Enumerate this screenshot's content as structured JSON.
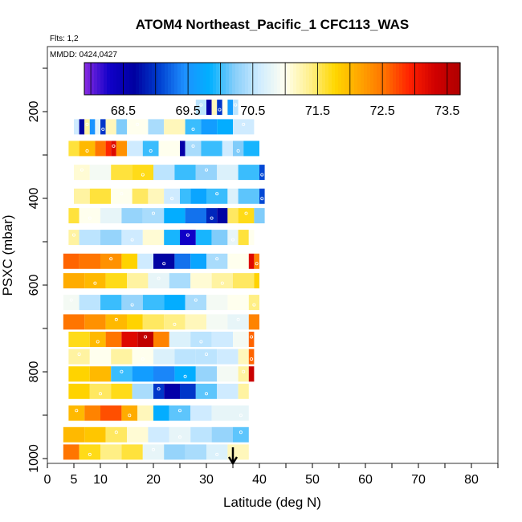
{
  "chart_data": {
    "type": "heatmap",
    "title": "ATOM4 Northeast_Pacific_1 CFC113_WAS",
    "flights_note": "Flts: 1,2",
    "dates_note": "MMDD: 0424,0427",
    "xlabel": "Latitude (deg N)",
    "ylabel": "PSXC (mbar)",
    "xlim": [
      0,
      85
    ],
    "ylim": [
      1000,
      50
    ],
    "x_ticks": [
      0,
      5,
      10,
      20,
      30,
      40,
      50,
      60,
      70,
      80
    ],
    "y_ticks": [
      200,
      400,
      600,
      800,
      1000
    ],
    "colorbar": {
      "ticks": [
        "68.5",
        "69.5",
        "70.5",
        "71.5",
        "72.5",
        "73.5"
      ],
      "tick_values": [
        68.5,
        69.5,
        70.5,
        71.5,
        72.5,
        73.5
      ],
      "range": [
        67.9,
        73.7
      ],
      "colors": [
        "#8a2be2",
        "#1000c8",
        "#0000a0",
        "#0040d0",
        "#1e90ff",
        "#00b0ff",
        "#87cefa",
        "#d0ecff",
        "#fffff0",
        "#fff08c",
        "#ffd700",
        "#ffa500",
        "#ff7000",
        "#ff2000",
        "#d00000",
        "#b00000"
      ]
    },
    "marker": {
      "type": "arrow",
      "x": 35
    },
    "rows": [
      {
        "p": 190,
        "segments": [
          [
            28,
            30,
            70.5
          ],
          [
            30,
            31,
            68.6
          ],
          [
            31,
            32,
            71.2
          ],
          [
            32,
            33,
            69.0
          ],
          [
            33,
            34,
            71.0
          ],
          [
            34,
            35,
            69.6
          ],
          [
            35,
            36,
            70.5
          ]
        ]
      },
      {
        "p": 235,
        "segments": [
          [
            5,
            6,
            70.6
          ],
          [
            6,
            7,
            68.7
          ],
          [
            7,
            8,
            71.3
          ],
          [
            8,
            9,
            69.5
          ],
          [
            9,
            10,
            70.8
          ],
          [
            10,
            11,
            69.0
          ],
          [
            11,
            13,
            71.2
          ],
          [
            13,
            15,
            70.2
          ],
          [
            15,
            19,
            71.0
          ],
          [
            19,
            22,
            70.4
          ],
          [
            22,
            26,
            71.2
          ],
          [
            26,
            29,
            70.0
          ],
          [
            29,
            32,
            69.6
          ],
          [
            32,
            35,
            69.8
          ],
          [
            35,
            39,
            70.6
          ]
        ]
      },
      {
        "p": 285,
        "segments": [
          [
            4,
            6,
            71.6
          ],
          [
            6,
            9,
            72.0
          ],
          [
            9,
            11,
            72.5
          ],
          [
            11,
            12,
            72.9
          ],
          [
            12,
            13,
            73.2
          ],
          [
            13,
            15,
            72.3
          ],
          [
            15,
            18,
            70.6
          ],
          [
            18,
            21,
            70.0
          ],
          [
            21,
            25,
            71.0
          ],
          [
            25,
            26,
            68.6
          ],
          [
            26,
            29,
            70.4
          ],
          [
            29,
            33,
            70.0
          ],
          [
            33,
            35,
            70.6
          ],
          [
            35,
            37,
            70.2
          ],
          [
            37,
            40,
            69.9
          ]
        ]
      },
      {
        "p": 340,
        "segments": [
          [
            5,
            8,
            71.1
          ],
          [
            8,
            12,
            70.9
          ],
          [
            12,
            16,
            71.6
          ],
          [
            16,
            20,
            71.7
          ],
          [
            20,
            24,
            70.5
          ],
          [
            24,
            28,
            70.0
          ],
          [
            28,
            32,
            70.3
          ],
          [
            32,
            36,
            70.7
          ],
          [
            36,
            40,
            70.0
          ],
          [
            40,
            41,
            69.1
          ]
        ]
      },
      {
        "p": 395,
        "segments": [
          [
            5,
            8,
            71.3
          ],
          [
            8,
            12,
            71.6
          ],
          [
            12,
            16,
            71.0
          ],
          [
            16,
            19,
            71.5
          ],
          [
            19,
            22,
            71.2
          ],
          [
            22,
            25,
            70.6
          ],
          [
            25,
            27,
            70.0
          ],
          [
            27,
            30,
            69.7
          ],
          [
            30,
            34,
            70.0
          ],
          [
            34,
            36,
            70.7
          ],
          [
            36,
            40,
            70.1
          ],
          [
            40,
            41,
            69.1
          ]
        ]
      },
      {
        "p": 440,
        "segments": [
          [
            4,
            6,
            71.6
          ],
          [
            6,
            10,
            71.0
          ],
          [
            10,
            14,
            70.8
          ],
          [
            14,
            18,
            70.3
          ],
          [
            18,
            22,
            70.4
          ],
          [
            22,
            26,
            69.8
          ],
          [
            26,
            30,
            69.3
          ],
          [
            30,
            32,
            68.9
          ],
          [
            32,
            34,
            68.7
          ],
          [
            34,
            36,
            71.5
          ],
          [
            36,
            39,
            71.7
          ],
          [
            39,
            41,
            70.2
          ]
        ]
      },
      {
        "p": 490,
        "segments": [
          [
            4,
            6,
            71.3
          ],
          [
            6,
            10,
            70.5
          ],
          [
            10,
            14,
            70.3
          ],
          [
            14,
            18,
            70.6
          ],
          [
            18,
            22,
            71.1
          ],
          [
            22,
            25,
            69.9
          ],
          [
            25,
            28,
            68.3
          ],
          [
            28,
            31,
            69.9
          ],
          [
            31,
            34,
            70.2
          ],
          [
            34,
            36,
            70.8
          ],
          [
            36,
            38,
            71.6
          ],
          [
            38,
            39,
            71.0
          ]
        ]
      },
      {
        "p": 545,
        "segments": [
          [
            3,
            6,
            72.6
          ],
          [
            6,
            10,
            72.5
          ],
          [
            10,
            14,
            72.3
          ],
          [
            14,
            17,
            71.8
          ],
          [
            17,
            20,
            70.6
          ],
          [
            20,
            24,
            68.7
          ],
          [
            24,
            27,
            69.3
          ],
          [
            27,
            30,
            69.7
          ],
          [
            30,
            34,
            70.4
          ],
          [
            34,
            38,
            71.0
          ],
          [
            38,
            39,
            73.2
          ],
          [
            39,
            40,
            72.4
          ]
        ]
      },
      {
        "p": 590,
        "segments": [
          [
            3,
            7,
            72.1
          ],
          [
            7,
            11,
            72.0
          ],
          [
            11,
            15,
            71.7
          ],
          [
            15,
            19,
            71.3
          ],
          [
            19,
            23,
            70.8
          ],
          [
            23,
            27,
            70.4
          ],
          [
            27,
            31,
            71.1
          ],
          [
            31,
            35,
            71.3
          ],
          [
            35,
            39,
            71.5
          ],
          [
            39,
            40,
            71.8
          ]
        ]
      },
      {
        "p": 640,
        "segments": [
          [
            3,
            6,
            70.9
          ],
          [
            6,
            10,
            70.5
          ],
          [
            10,
            14,
            70.0
          ],
          [
            14,
            18,
            70.3
          ],
          [
            18,
            22,
            70.0
          ],
          [
            22,
            26,
            69.8
          ],
          [
            26,
            30,
            70.4
          ],
          [
            30,
            34,
            70.9
          ],
          [
            34,
            38,
            71.0
          ],
          [
            38,
            40,
            71.4
          ]
        ]
      },
      {
        "p": 685,
        "segments": [
          [
            3,
            7,
            72.5
          ],
          [
            7,
            11,
            72.3
          ],
          [
            11,
            15,
            72.0
          ],
          [
            15,
            18,
            71.8
          ],
          [
            18,
            22,
            71.5
          ],
          [
            22,
            26,
            71.4
          ],
          [
            26,
            30,
            71.2
          ],
          [
            30,
            34,
            70.9
          ],
          [
            34,
            38,
            70.8
          ],
          [
            38,
            40,
            72.4
          ]
        ]
      },
      {
        "p": 725,
        "segments": [
          [
            4,
            8,
            71.7
          ],
          [
            8,
            11,
            72.0
          ],
          [
            11,
            14,
            72.5
          ],
          [
            14,
            17,
            73.2
          ],
          [
            17,
            20,
            73.5
          ],
          [
            20,
            23,
            72.4
          ],
          [
            23,
            27,
            70.7
          ],
          [
            27,
            31,
            70.5
          ],
          [
            31,
            35,
            70.6
          ],
          [
            35,
            38,
            70.9
          ],
          [
            38,
            39,
            72.6
          ]
        ]
      },
      {
        "p": 765,
        "segments": [
          [
            4,
            8,
            71.3
          ],
          [
            8,
            12,
            71.0
          ],
          [
            12,
            16,
            71.3
          ],
          [
            16,
            20,
            71.0
          ],
          [
            20,
            24,
            70.7
          ],
          [
            24,
            28,
            70.5
          ],
          [
            28,
            32,
            70.5
          ],
          [
            32,
            36,
            70.6
          ],
          [
            36,
            38,
            71.2
          ],
          [
            38,
            39,
            72.6
          ]
        ]
      },
      {
        "p": 805,
        "segments": [
          [
            4,
            8,
            71.8
          ],
          [
            8,
            12,
            72.0
          ],
          [
            12,
            16,
            70.0
          ],
          [
            16,
            20,
            69.6
          ],
          [
            20,
            24,
            69.4
          ],
          [
            24,
            28,
            69.8
          ],
          [
            28,
            32,
            70.3
          ],
          [
            32,
            36,
            70.9
          ],
          [
            36,
            38,
            71.3
          ],
          [
            38,
            39,
            73.4
          ]
        ]
      },
      {
        "p": 845,
        "segments": [
          [
            4,
            8,
            71.8
          ],
          [
            8,
            12,
            71.5
          ],
          [
            12,
            16,
            71.7
          ],
          [
            16,
            20,
            70.4
          ],
          [
            20,
            22,
            69.0
          ],
          [
            22,
            25,
            68.6
          ],
          [
            25,
            28,
            69.0
          ],
          [
            28,
            32,
            70.1
          ],
          [
            32,
            36,
            70.6
          ],
          [
            36,
            38,
            71.3
          ]
        ]
      },
      {
        "p": 895,
        "segments": [
          [
            4,
            7,
            72.0
          ],
          [
            7,
            10,
            72.4
          ],
          [
            10,
            14,
            72.7
          ],
          [
            14,
            17,
            72.1
          ],
          [
            17,
            20,
            71.2
          ],
          [
            20,
            23,
            69.8
          ],
          [
            23,
            27,
            70.1
          ],
          [
            27,
            31,
            70.6
          ],
          [
            31,
            35,
            70.8
          ],
          [
            35,
            38,
            70.8
          ]
        ]
      },
      {
        "p": 945,
        "segments": [
          [
            3,
            7,
            72.0
          ],
          [
            7,
            11,
            71.9
          ],
          [
            11,
            15,
            71.5
          ],
          [
            15,
            19,
            71.1
          ],
          [
            19,
            23,
            70.6
          ],
          [
            23,
            27,
            70.8
          ],
          [
            27,
            31,
            70.5
          ],
          [
            31,
            35,
            70.3
          ],
          [
            35,
            38,
            70.1
          ]
        ]
      },
      {
        "p": 985,
        "segments": [
          [
            3,
            6,
            72.5
          ],
          [
            6,
            10,
            71.7
          ],
          [
            10,
            14,
            71.4
          ],
          [
            14,
            18,
            71.6
          ],
          [
            18,
            22,
            70.8
          ],
          [
            22,
            26,
            70.3
          ],
          [
            26,
            30,
            70.4
          ],
          [
            30,
            34,
            70.7
          ],
          [
            34,
            38,
            71.2
          ]
        ]
      }
    ]
  }
}
